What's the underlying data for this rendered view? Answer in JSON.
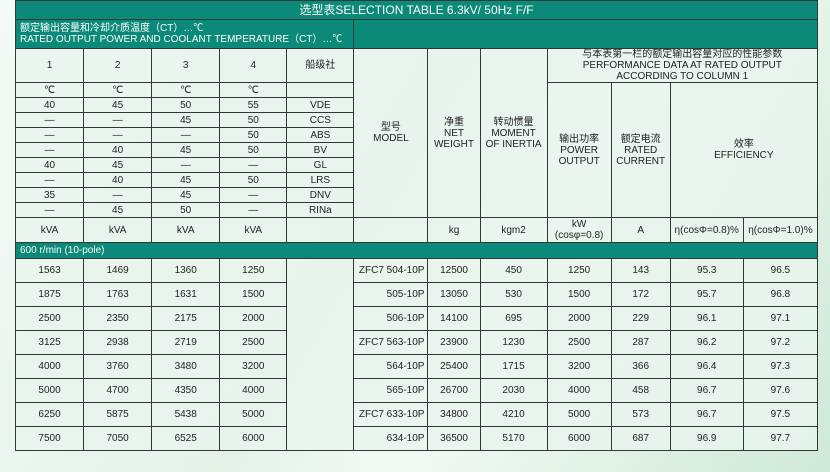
{
  "title": "选型表SELECTION TABLE 6.3kV/ 50Hz  F/F",
  "subheader": {
    "cn": "额定输出容量和冷却介质温度（CT）…℃",
    "en": "RATED OUTPUT POWER AND COOLANT TEMPERATURE（CT）…℃"
  },
  "columns": {
    "numbers": [
      "1",
      "2",
      "3",
      "4"
    ],
    "class_society": "船级社",
    "model": {
      "cn": "型号",
      "en": "MODEL"
    },
    "net_weight": {
      "cn": "净重",
      "en1": "NET",
      "en2": "WEIGHT"
    },
    "inertia": {
      "cn": "转动惯量",
      "en1": "MOMENT",
      "en2": "OF INERTIA"
    },
    "performance": {
      "cn": "与本表第一栏的额定输出容量对应的性能参数",
      "en1": "PERFORMANCE DATA AT RATED OUTPUT",
      "en2": "ACCORDING TO COLUMN 1"
    },
    "power": {
      "cn": "输出功率",
      "en1": "POWER",
      "en2": "OUTPUT"
    },
    "current": {
      "cn": "额定电流",
      "en1": "RATED",
      "en2": "CURRENT"
    },
    "efficiency": {
      "cn": "效率",
      "en": "EFFICIENCY"
    }
  },
  "temp_unit": "℃",
  "class_rows": [
    {
      "t": [
        "40",
        "45",
        "50",
        "55"
      ],
      "society": "VDE"
    },
    {
      "t": [
        "—",
        "—",
        "45",
        "50"
      ],
      "society": "CCS"
    },
    {
      "t": [
        "—",
        "—",
        "—",
        "50"
      ],
      "society": "ABS"
    },
    {
      "t": [
        "—",
        "40",
        "45",
        "50"
      ],
      "society": "BV"
    },
    {
      "t": [
        "40",
        "45",
        "—",
        "—"
      ],
      "society": "GL"
    },
    {
      "t": [
        "—",
        "40",
        "45",
        "50"
      ],
      "society": "LRS"
    },
    {
      "t": [
        "35",
        "—",
        "45",
        "—"
      ],
      "society": "DNV"
    },
    {
      "t": [
        "—",
        "45",
        "50",
        "—"
      ],
      "society": "RINa"
    }
  ],
  "units": {
    "kva": "kVA",
    "kg": "kg",
    "kgm2": "kgm2",
    "kw": "kW",
    "kw_note": "(cosφ=0.8)",
    "a": "A",
    "eff08": "η(cosΦ=0.8)%",
    "eff10": "η(cosΦ=1.0)%"
  },
  "speed_label": "600 r/min (10-pole)",
  "rows": [
    {
      "kva": [
        "1563",
        "1469",
        "1360",
        "1250"
      ],
      "model": "ZFC7 504-10P",
      "weight": "12500",
      "inertia": "450",
      "power": "1250",
      "current": "143",
      "eff08": "95.3",
      "eff10": "96.5"
    },
    {
      "kva": [
        "1875",
        "1763",
        "1631",
        "1500"
      ],
      "model": "505-10P",
      "weight": "13050",
      "inertia": "530",
      "power": "1500",
      "current": "172",
      "eff08": "95.7",
      "eff10": "96.8"
    },
    {
      "kva": [
        "2500",
        "2350",
        "2175",
        "2000"
      ],
      "model": "506-10P",
      "weight": "14100",
      "inertia": "695",
      "power": "2000",
      "current": "229",
      "eff08": "96.1",
      "eff10": "97.1"
    },
    {
      "kva": [
        "3125",
        "2938",
        "2719",
        "2500"
      ],
      "model": "ZFC7 563-10P",
      "weight": "23900",
      "inertia": "1230",
      "power": "2500",
      "current": "287",
      "eff08": "96.2",
      "eff10": "97.2"
    },
    {
      "kva": [
        "4000",
        "3760",
        "3480",
        "3200"
      ],
      "model": "564-10P",
      "weight": "25400",
      "inertia": "1715",
      "power": "3200",
      "current": "366",
      "eff08": "96.4",
      "eff10": "97.3"
    },
    {
      "kva": [
        "5000",
        "4700",
        "4350",
        "4000"
      ],
      "model": "565-10P",
      "weight": "26700",
      "inertia": "2030",
      "power": "4000",
      "current": "458",
      "eff08": "96.7",
      "eff10": "97.6"
    },
    {
      "kva": [
        "6250",
        "5875",
        "5438",
        "5000"
      ],
      "model": "ZFC7 633-10P",
      "weight": "34800",
      "inertia": "4210",
      "power": "5000",
      "current": "573",
      "eff08": "96.7",
      "eff10": "97.5"
    },
    {
      "kva": [
        "7500",
        "7050",
        "6525",
        "6000"
      ],
      "model": "634-10P",
      "weight": "36500",
      "inertia": "5170",
      "power": "6000",
      "current": "687",
      "eff08": "96.9",
      "eff10": "97.7"
    }
  ],
  "colors": {
    "header_teal": "#0b8a7a",
    "cell_bg": "#e8f5ec",
    "border": "#2f3a36"
  }
}
